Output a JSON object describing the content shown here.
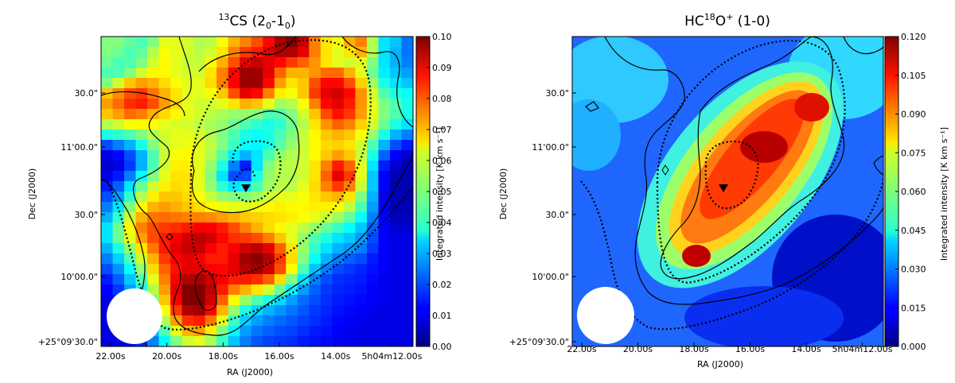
{
  "chart_data": [
    {
      "type": "heatmap",
      "title_sup": "13",
      "title_main": "CS (2",
      "title_sub1": "0",
      "title_mid": "-1",
      "title_sub2": "0",
      "title_end": ")",
      "xlabel": "RA (J2000)",
      "ylabel": "Dec (J2000)",
      "x_ticks": [
        "22.00s",
        "20.00s",
        "18.00s",
        "16.00s",
        "14.00s",
        "5h04m12.00s"
      ],
      "y_ticks": [
        "30.0\"",
        "11'00.0\"",
        "30.0\"",
        "10'00.0\"",
        "+25°09'30.0\""
      ],
      "colorbar": {
        "label": "Integrated intensity [K km s⁻¹]",
        "range": [
          0.0,
          0.1
        ],
        "ticks": [
          "0.10",
          "0.09",
          "0.08",
          "0.07",
          "0.06",
          "0.05",
          "0.04",
          "0.03",
          "0.02",
          "0.01",
          "0.00"
        ]
      },
      "colormap": "jet",
      "grid": "27x30",
      "values": [
        [
          0.05,
          0.05,
          0.047,
          0.045,
          0.05,
          0.06,
          0.06,
          0.058,
          0.055,
          0.056,
          0.062,
          0.07,
          0.075,
          0.08,
          0.087,
          0.096,
          0.1,
          0.093,
          0.075,
          0.065,
          0.062,
          0.07,
          0.075,
          0.055,
          0.035,
          0.032,
          0.024
        ],
        [
          0.05,
          0.048,
          0.045,
          0.047,
          0.055,
          0.062,
          0.06,
          0.058,
          0.056,
          0.058,
          0.065,
          0.075,
          0.082,
          0.085,
          0.09,
          0.095,
          0.095,
          0.09,
          0.075,
          0.065,
          0.06,
          0.065,
          0.07,
          0.055,
          0.035,
          0.03,
          0.024
        ],
        [
          0.048,
          0.045,
          0.045,
          0.05,
          0.058,
          0.063,
          0.06,
          0.057,
          0.057,
          0.062,
          0.07,
          0.08,
          0.09,
          0.093,
          0.09,
          0.087,
          0.082,
          0.078,
          0.073,
          0.065,
          0.06,
          0.058,
          0.06,
          0.05,
          0.035,
          0.03,
          0.025
        ],
        [
          0.045,
          0.045,
          0.05,
          0.058,
          0.063,
          0.063,
          0.06,
          0.058,
          0.058,
          0.065,
          0.075,
          0.087,
          0.097,
          0.097,
          0.09,
          0.078,
          0.07,
          0.07,
          0.073,
          0.077,
          0.077,
          0.07,
          0.06,
          0.048,
          0.036,
          0.032,
          0.028
        ],
        [
          0.05,
          0.058,
          0.068,
          0.072,
          0.07,
          0.066,
          0.062,
          0.06,
          0.06,
          0.066,
          0.075,
          0.088,
          0.097,
          0.097,
          0.087,
          0.072,
          0.065,
          0.068,
          0.08,
          0.087,
          0.087,
          0.08,
          0.067,
          0.053,
          0.04,
          0.035,
          0.032
        ],
        [
          0.068,
          0.074,
          0.08,
          0.082,
          0.076,
          0.07,
          0.065,
          0.06,
          0.06,
          0.062,
          0.068,
          0.08,
          0.09,
          0.087,
          0.075,
          0.064,
          0.062,
          0.068,
          0.082,
          0.09,
          0.092,
          0.087,
          0.073,
          0.058,
          0.045,
          0.04,
          0.038
        ],
        [
          0.072,
          0.077,
          0.083,
          0.085,
          0.08,
          0.072,
          0.066,
          0.06,
          0.058,
          0.058,
          0.06,
          0.065,
          0.07,
          0.068,
          0.06,
          0.053,
          0.055,
          0.062,
          0.075,
          0.087,
          0.09,
          0.085,
          0.073,
          0.06,
          0.05,
          0.045,
          0.04
        ],
        [
          0.068,
          0.072,
          0.077,
          0.075,
          0.07,
          0.066,
          0.063,
          0.06,
          0.058,
          0.056,
          0.054,
          0.052,
          0.052,
          0.05,
          0.045,
          0.045,
          0.05,
          0.058,
          0.068,
          0.08,
          0.086,
          0.082,
          0.072,
          0.06,
          0.05,
          0.045,
          0.04
        ],
        [
          0.055,
          0.058,
          0.062,
          0.063,
          0.062,
          0.06,
          0.059,
          0.058,
          0.056,
          0.054,
          0.052,
          0.048,
          0.045,
          0.042,
          0.04,
          0.042,
          0.048,
          0.055,
          0.065,
          0.073,
          0.078,
          0.075,
          0.067,
          0.058,
          0.048,
          0.04,
          0.035
        ],
        [
          0.04,
          0.042,
          0.045,
          0.05,
          0.055,
          0.058,
          0.06,
          0.06,
          0.058,
          0.055,
          0.05,
          0.045,
          0.04,
          0.038,
          0.04,
          0.045,
          0.05,
          0.057,
          0.063,
          0.068,
          0.07,
          0.068,
          0.062,
          0.052,
          0.04,
          0.03,
          0.025
        ],
        [
          0.02,
          0.025,
          0.03,
          0.04,
          0.05,
          0.057,
          0.06,
          0.061,
          0.06,
          0.056,
          0.05,
          0.043,
          0.038,
          0.037,
          0.04,
          0.046,
          0.052,
          0.057,
          0.063,
          0.066,
          0.067,
          0.065,
          0.058,
          0.045,
          0.03,
          0.02,
          0.015
        ],
        [
          0.01,
          0.013,
          0.02,
          0.03,
          0.045,
          0.057,
          0.062,
          0.063,
          0.06,
          0.055,
          0.046,
          0.036,
          0.03,
          0.035,
          0.045,
          0.052,
          0.055,
          0.058,
          0.063,
          0.068,
          0.072,
          0.068,
          0.057,
          0.04,
          0.022,
          0.012,
          0.008
        ],
        [
          0.008,
          0.01,
          0.018,
          0.03,
          0.045,
          0.058,
          0.064,
          0.064,
          0.06,
          0.052,
          0.04,
          0.025,
          0.015,
          0.035,
          0.05,
          0.055,
          0.056,
          0.058,
          0.065,
          0.075,
          0.085,
          0.078,
          0.06,
          0.035,
          0.015,
          0.008,
          0.005
        ],
        [
          0.01,
          0.015,
          0.025,
          0.038,
          0.05,
          0.06,
          0.065,
          0.065,
          0.06,
          0.05,
          0.035,
          0.02,
          0.02,
          0.04,
          0.052,
          0.055,
          0.055,
          0.058,
          0.065,
          0.078,
          0.09,
          0.082,
          0.06,
          0.032,
          0.012,
          0.005,
          0.005
        ],
        [
          0.015,
          0.022,
          0.035,
          0.048,
          0.058,
          0.064,
          0.066,
          0.065,
          0.06,
          0.052,
          0.042,
          0.035,
          0.036,
          0.045,
          0.053,
          0.056,
          0.056,
          0.06,
          0.066,
          0.075,
          0.082,
          0.075,
          0.057,
          0.032,
          0.012,
          0.005,
          0.005
        ],
        [
          0.02,
          0.028,
          0.042,
          0.055,
          0.064,
          0.068,
          0.068,
          0.066,
          0.062,
          0.057,
          0.052,
          0.05,
          0.05,
          0.053,
          0.057,
          0.06,
          0.06,
          0.062,
          0.065,
          0.068,
          0.07,
          0.065,
          0.05,
          0.03,
          0.01,
          0.005,
          0.005
        ],
        [
          0.025,
          0.035,
          0.05,
          0.063,
          0.07,
          0.072,
          0.07,
          0.068,
          0.066,
          0.063,
          0.061,
          0.06,
          0.06,
          0.061,
          0.063,
          0.064,
          0.063,
          0.063,
          0.064,
          0.064,
          0.062,
          0.056,
          0.045,
          0.028,
          0.01,
          0.005,
          0.005
        ],
        [
          0.03,
          0.042,
          0.058,
          0.07,
          0.076,
          0.077,
          0.076,
          0.075,
          0.075,
          0.074,
          0.072,
          0.07,
          0.068,
          0.067,
          0.066,
          0.065,
          0.064,
          0.062,
          0.06,
          0.057,
          0.053,
          0.047,
          0.038,
          0.025,
          0.012,
          0.006,
          0.006
        ],
        [
          0.035,
          0.048,
          0.063,
          0.075,
          0.08,
          0.082,
          0.083,
          0.085,
          0.088,
          0.088,
          0.085,
          0.08,
          0.075,
          0.07,
          0.066,
          0.063,
          0.06,
          0.056,
          0.052,
          0.047,
          0.043,
          0.038,
          0.032,
          0.022,
          0.012,
          0.008,
          0.008
        ],
        [
          0.035,
          0.048,
          0.06,
          0.072,
          0.08,
          0.085,
          0.088,
          0.092,
          0.094,
          0.092,
          0.087,
          0.083,
          0.082,
          0.08,
          0.075,
          0.068,
          0.06,
          0.052,
          0.045,
          0.04,
          0.035,
          0.032,
          0.028,
          0.02,
          0.012,
          0.01,
          0.01
        ],
        [
          0.03,
          0.04,
          0.052,
          0.065,
          0.076,
          0.085,
          0.09,
          0.093,
          0.093,
          0.088,
          0.085,
          0.088,
          0.092,
          0.094,
          0.09,
          0.078,
          0.065,
          0.052,
          0.042,
          0.035,
          0.03,
          0.028,
          0.025,
          0.018,
          0.012,
          0.01,
          0.01
        ],
        [
          0.025,
          0.033,
          0.045,
          0.058,
          0.07,
          0.082,
          0.088,
          0.09,
          0.088,
          0.085,
          0.085,
          0.09,
          0.097,
          0.099,
          0.095,
          0.082,
          0.066,
          0.05,
          0.038,
          0.03,
          0.025,
          0.022,
          0.02,
          0.015,
          0.012,
          0.01,
          0.01
        ],
        [
          0.02,
          0.027,
          0.038,
          0.052,
          0.066,
          0.078,
          0.086,
          0.09,
          0.09,
          0.088,
          0.087,
          0.09,
          0.095,
          0.097,
          0.092,
          0.08,
          0.063,
          0.045,
          0.032,
          0.025,
          0.02,
          0.018,
          0.016,
          0.014,
          0.012,
          0.01,
          0.01
        ],
        [
          0.015,
          0.022,
          0.032,
          0.045,
          0.06,
          0.075,
          0.088,
          0.095,
          0.096,
          0.092,
          0.088,
          0.085,
          0.085,
          0.083,
          0.078,
          0.066,
          0.05,
          0.035,
          0.025,
          0.02,
          0.017,
          0.016,
          0.015,
          0.013,
          0.011,
          0.01,
          0.01
        ],
        [
          0.012,
          0.018,
          0.028,
          0.04,
          0.055,
          0.072,
          0.09,
          0.1,
          0.1,
          0.094,
          0.085,
          0.075,
          0.07,
          0.065,
          0.058,
          0.048,
          0.037,
          0.028,
          0.022,
          0.018,
          0.016,
          0.015,
          0.014,
          0.012,
          0.011,
          0.01,
          0.01
        ],
        [
          0.01,
          0.015,
          0.024,
          0.036,
          0.05,
          0.068,
          0.088,
          0.1,
          0.1,
          0.092,
          0.078,
          0.062,
          0.052,
          0.045,
          0.04,
          0.034,
          0.028,
          0.023,
          0.02,
          0.017,
          0.015,
          0.014,
          0.013,
          0.012,
          0.011,
          0.01,
          0.01
        ],
        [
          0.01,
          0.013,
          0.02,
          0.03,
          0.045,
          0.062,
          0.082,
          0.095,
          0.097,
          0.087,
          0.07,
          0.052,
          0.04,
          0.034,
          0.03,
          0.027,
          0.024,
          0.021,
          0.018,
          0.016,
          0.014,
          0.013,
          0.012,
          0.011,
          0.01,
          0.01,
          0.01
        ],
        [
          0.01,
          0.012,
          0.016,
          0.024,
          0.038,
          0.055,
          0.072,
          0.083,
          0.085,
          0.076,
          0.06,
          0.043,
          0.033,
          0.028,
          0.025,
          0.023,
          0.021,
          0.019,
          0.017,
          0.015,
          0.013,
          0.012,
          0.011,
          0.01,
          0.01,
          0.01,
          0.01
        ],
        [
          0.01,
          0.011,
          0.014,
          0.02,
          0.03,
          0.045,
          0.06,
          0.07,
          0.072,
          0.064,
          0.05,
          0.037,
          0.028,
          0.024,
          0.022,
          0.02,
          0.019,
          0.017,
          0.015,
          0.014,
          0.012,
          0.011,
          0.01,
          0.01,
          0.01,
          0.01,
          0.01
        ],
        [
          0.01,
          0.01,
          0.012,
          0.016,
          0.025,
          0.037,
          0.05,
          0.058,
          0.06,
          0.054,
          0.043,
          0.032,
          0.025,
          0.021,
          0.019,
          0.018,
          0.017,
          0.015,
          0.014,
          0.013,
          0.012,
          0.011,
          0.01,
          0.01,
          0.01,
          0.01,
          0.01
        ]
      ]
    },
    {
      "type": "heatmap",
      "title_main": "HC",
      "title_sup": "18",
      "title_end": "O",
      "title_sup2": "+",
      "title_trans": " (1-0)",
      "xlabel": "RA (J2000)",
      "ylabel": "Dec (J2000)",
      "x_ticks": [
        "22.00s",
        "20.00s",
        "18.00s",
        "16.00s",
        "14.00s",
        "5h04m12.00s"
      ],
      "y_ticks": [
        "30.0\"",
        "11'00.0\"",
        "30.0\"",
        "10'00.0\"",
        "+25°09'30.0\""
      ],
      "colorbar": {
        "label": "Integrated intensity [K km s⁻¹]",
        "range": [
          0.0,
          0.12
        ],
        "ticks": [
          "0.120",
          "0.105",
          "0.090",
          "0.075",
          "0.060",
          "0.045",
          "0.030",
          "0.015",
          "0.000"
        ]
      },
      "colormap": "jet"
    }
  ]
}
